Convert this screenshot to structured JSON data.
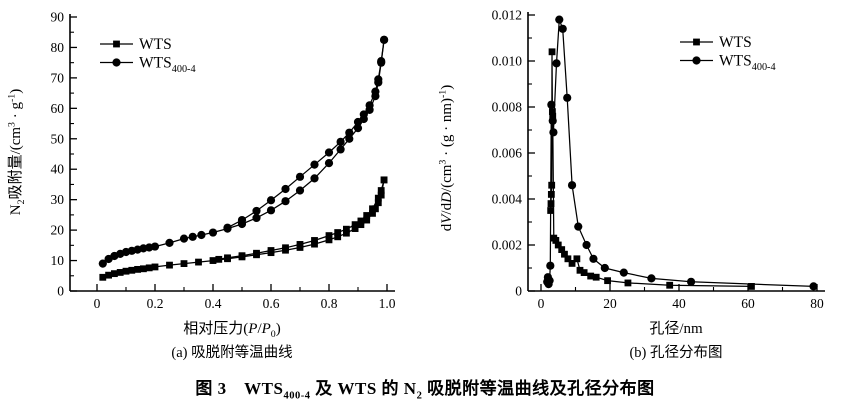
{
  "colors": {
    "background": "#ffffff",
    "ink": "#000000"
  },
  "figure_title": {
    "plain": "图 3  WTS400-4 及 WTS 的 N2 吸脱附等温曲线及孔径分布图",
    "segments": [
      {
        "t": "图 3　WTS"
      },
      {
        "t": "400-4",
        "s": "sub"
      },
      {
        "t": " 及 WTS 的 N"
      },
      {
        "t": "2",
        "s": "sub"
      },
      {
        "t": " 吸脱附等温曲线及孔径分布图"
      }
    ]
  },
  "chart_data": [
    {
      "id": "isotherm",
      "type": "line",
      "caption": {
        "plain": "(a) 吸脱附等温曲线",
        "segments": [
          {
            "t": "(a) 吸脱附等温曲线"
          }
        ]
      },
      "xlabel": {
        "plain": "相对压力(P/P0)",
        "segments": [
          {
            "t": "相对压力("
          },
          {
            "t": "P",
            "s": "i"
          },
          {
            "t": "/"
          },
          {
            "t": "P",
            "s": "i"
          },
          {
            "t": "0",
            "s": "sub"
          },
          {
            "t": ")"
          }
        ]
      },
      "ylabel": {
        "plain": "N2吸附量/(cm3·g-1)",
        "segments": [
          {
            "t": "N"
          },
          {
            "t": "2",
            "s": "sub"
          },
          {
            "t": "吸附量/(cm"
          },
          {
            "t": "3",
            "s": "sup"
          },
          {
            "t": " · g"
          },
          {
            "t": "-1",
            "s": "sup"
          },
          {
            "t": ")"
          }
        ]
      },
      "xlim": [
        0,
        1.0
      ],
      "ylim": [
        0,
        90
      ],
      "xticks": {
        "major": [
          0,
          0.2,
          0.4,
          0.6,
          0.8,
          1.0
        ],
        "labels": [
          "0",
          "0.2",
          "0.4",
          "0.6",
          "0.8",
          "1.0"
        ],
        "minor": [
          0.1,
          0.3,
          0.5,
          0.7,
          0.9
        ]
      },
      "yticks": {
        "major": [
          0,
          10,
          20,
          30,
          40,
          50,
          60,
          70,
          80,
          90
        ],
        "labels": [
          "0",
          "10",
          "20",
          "30",
          "40",
          "50",
          "60",
          "70",
          "80",
          "90"
        ],
        "minor": [
          5,
          15,
          25,
          35,
          45,
          55,
          65,
          75,
          85
        ]
      },
      "legend": {
        "position": "top-left"
      },
      "series": [
        {
          "name": "WTS",
          "label_segments": [
            {
              "t": "WTS"
            }
          ],
          "marker": "square",
          "branches": [
            {
              "name": "adsorption",
              "points": [
                [
                  0.02,
                  4.5
                ],
                [
                  0.04,
                  5.2
                ],
                [
                  0.06,
                  5.7
                ],
                [
                  0.08,
                  6.1
                ],
                [
                  0.1,
                  6.5
                ],
                [
                  0.12,
                  6.8
                ],
                [
                  0.14,
                  7.1
                ],
                [
                  0.16,
                  7.3
                ],
                [
                  0.18,
                  7.6
                ],
                [
                  0.2,
                  7.9
                ],
                [
                  0.25,
                  8.5
                ],
                [
                  0.3,
                  9.0
                ],
                [
                  0.35,
                  9.5
                ],
                [
                  0.4,
                  10.0
                ],
                [
                  0.45,
                  10.6
                ],
                [
                  0.5,
                  11.2
                ],
                [
                  0.55,
                  11.9
                ],
                [
                  0.6,
                  12.6
                ],
                [
                  0.65,
                  13.4
                ],
                [
                  0.7,
                  14.3
                ],
                [
                  0.75,
                  15.4
                ],
                [
                  0.8,
                  16.8
                ],
                [
                  0.83,
                  17.8
                ],
                [
                  0.86,
                  19.0
                ],
                [
                  0.89,
                  20.5
                ],
                [
                  0.91,
                  21.8
                ],
                [
                  0.93,
                  23.3
                ],
                [
                  0.95,
                  25.5
                ],
                [
                  0.96,
                  27.0
                ],
                [
                  0.97,
                  29.0
                ],
                [
                  0.98,
                  31.5
                ],
                [
                  0.99,
                  36.5
                ]
              ]
            },
            {
              "name": "desorption",
              "points": [
                [
                  0.99,
                  36.5
                ],
                [
                  0.98,
                  33.0
                ],
                [
                  0.97,
                  30.5
                ],
                [
                  0.95,
                  27.0
                ],
                [
                  0.93,
                  24.8
                ],
                [
                  0.91,
                  23.0
                ],
                [
                  0.89,
                  21.8
                ],
                [
                  0.86,
                  20.3
                ],
                [
                  0.83,
                  19.2
                ],
                [
                  0.8,
                  18.2
                ],
                [
                  0.75,
                  16.6
                ],
                [
                  0.7,
                  15.3
                ],
                [
                  0.65,
                  14.2
                ],
                [
                  0.6,
                  13.3
                ],
                [
                  0.55,
                  12.4
                ],
                [
                  0.5,
                  11.6
                ],
                [
                  0.45,
                  10.9
                ],
                [
                  0.42,
                  10.4
                ]
              ]
            }
          ]
        },
        {
          "name": "WTS400-4",
          "label_segments": [
            {
              "t": "WTS"
            },
            {
              "t": "400-4",
              "s": "sub"
            }
          ],
          "marker": "circle",
          "branches": [
            {
              "name": "adsorption",
              "points": [
                [
                  0.02,
                  9.0
                ],
                [
                  0.04,
                  10.5
                ],
                [
                  0.06,
                  11.5
                ],
                [
                  0.08,
                  12.2
                ],
                [
                  0.1,
                  12.8
                ],
                [
                  0.12,
                  13.2
                ],
                [
                  0.14,
                  13.6
                ],
                [
                  0.16,
                  14.0
                ],
                [
                  0.18,
                  14.3
                ],
                [
                  0.2,
                  14.6
                ],
                [
                  0.25,
                  15.8
                ],
                [
                  0.3,
                  17.2
                ],
                [
                  0.33,
                  17.8
                ],
                [
                  0.36,
                  18.4
                ],
                [
                  0.4,
                  19.2
                ],
                [
                  0.45,
                  20.5
                ],
                [
                  0.5,
                  22.0
                ],
                [
                  0.55,
                  24.0
                ],
                [
                  0.6,
                  26.5
                ],
                [
                  0.65,
                  29.5
                ],
                [
                  0.7,
                  33.0
                ],
                [
                  0.75,
                  37.0
                ],
                [
                  0.8,
                  42.0
                ],
                [
                  0.84,
                  46.5
                ],
                [
                  0.87,
                  50.0
                ],
                [
                  0.9,
                  53.5
                ],
                [
                  0.92,
                  56.5
                ],
                [
                  0.94,
                  59.5
                ],
                [
                  0.96,
                  64.0
                ],
                [
                  0.97,
                  68.5
                ],
                [
                  0.98,
                  75.0
                ],
                [
                  0.99,
                  82.5
                ]
              ]
            },
            {
              "name": "desorption",
              "points": [
                [
                  0.99,
                  82.5
                ],
                [
                  0.98,
                  75.5
                ],
                [
                  0.97,
                  69.5
                ],
                [
                  0.96,
                  65.5
                ],
                [
                  0.94,
                  61.0
                ],
                [
                  0.92,
                  58.0
                ],
                [
                  0.9,
                  55.5
                ],
                [
                  0.87,
                  52.0
                ],
                [
                  0.84,
                  49.0
                ],
                [
                  0.8,
                  45.5
                ],
                [
                  0.75,
                  41.5
                ],
                [
                  0.7,
                  37.5
                ],
                [
                  0.65,
                  33.5
                ],
                [
                  0.6,
                  29.8
                ],
                [
                  0.55,
                  26.3
                ],
                [
                  0.5,
                  23.3
                ],
                [
                  0.45,
                  20.8
                ]
              ]
            }
          ]
        }
      ]
    },
    {
      "id": "pore-size-distribution",
      "type": "line",
      "caption": {
        "plain": "(b) 孔径分布图",
        "segments": [
          {
            "t": "(b) 孔径分布图"
          }
        ]
      },
      "xlabel": {
        "plain": "孔径/nm",
        "segments": [
          {
            "t": "孔径/nm"
          }
        ]
      },
      "ylabel": {
        "plain": "dV/dD/(cm3·(g·nm)-1)",
        "segments": [
          {
            "t": "d"
          },
          {
            "t": "V",
            "s": "i"
          },
          {
            "t": "/d"
          },
          {
            "t": "D",
            "s": "i"
          },
          {
            "t": "/(cm"
          },
          {
            "t": "3",
            "s": "sup"
          },
          {
            "t": " · (g · nm)"
          },
          {
            "t": "-1",
            "s": "sup"
          },
          {
            "t": ")"
          }
        ]
      },
      "xlim": [
        0,
        80
      ],
      "ylim": [
        0,
        0.012
      ],
      "xticks": {
        "major": [
          0,
          20,
          40,
          60,
          80
        ],
        "labels": [
          "0",
          "20",
          "40",
          "60",
          "80"
        ],
        "minor": [
          10,
          30,
          50,
          70
        ]
      },
      "yticks": {
        "major": [
          0,
          0.002,
          0.004,
          0.006,
          0.008,
          0.01,
          0.012
        ],
        "labels": [
          "0",
          "0.002",
          "0.004",
          "0.006",
          "0.008",
          "0.010",
          "0.012"
        ],
        "minor": [
          0.001,
          0.003,
          0.005,
          0.007,
          0.009,
          0.011
        ]
      },
      "legend": {
        "position": "top-right"
      },
      "series": [
        {
          "name": "WTS",
          "label_segments": [
            {
              "t": "WTS"
            }
          ],
          "marker": "square",
          "branches": [
            {
              "name": "distribution",
              "points": [
                [
                  2.8,
                  0.0035
                ],
                [
                  2.9,
                  0.0038
                ],
                [
                  3.0,
                  0.0042
                ],
                [
                  3.1,
                  0.0046
                ],
                [
                  3.2,
                  0.0104
                ],
                [
                  3.3,
                  0.0078
                ],
                [
                  3.4,
                  0.0076
                ],
                [
                  3.7,
                  0.0023
                ],
                [
                  4.3,
                  0.0022
                ],
                [
                  5.0,
                  0.002
                ],
                [
                  6.0,
                  0.0018
                ],
                [
                  6.8,
                  0.0016
                ],
                [
                  7.8,
                  0.0014
                ],
                [
                  9.0,
                  0.0012
                ],
                [
                  10.4,
                  0.0014
                ],
                [
                  11.3,
                  0.0009
                ],
                [
                  12.5,
                  0.0008
                ],
                [
                  14.4,
                  0.00065
                ],
                [
                  16.0,
                  0.0006
                ],
                [
                  19.3,
                  0.00045
                ],
                [
                  25.2,
                  0.00035
                ],
                [
                  37.3,
                  0.00025
                ],
                [
                  61.0,
                  0.0002
                ]
              ]
            }
          ]
        },
        {
          "name": "WTS400-4",
          "label_segments": [
            {
              "t": "WTS"
            },
            {
              "t": "400-4",
              "s": "sub"
            }
          ],
          "marker": "circle",
          "branches": [
            {
              "name": "distribution",
              "points": [
                [
                  1.8,
                  0.0004
                ],
                [
                  2.0,
                  0.0006
                ],
                [
                  2.2,
                  0.0003
                ],
                [
                  2.5,
                  0.00045
                ],
                [
                  2.7,
                  0.0011
                ],
                [
                  3.0,
                  0.0081
                ],
                [
                  3.4,
                  0.0074
                ],
                [
                  3.6,
                  0.0069
                ],
                [
                  4.5,
                  0.0099
                ],
                [
                  5.3,
                  0.0118
                ],
                [
                  6.3,
                  0.0114
                ],
                [
                  7.6,
                  0.0084
                ],
                [
                  9.0,
                  0.0046
                ],
                [
                  10.8,
                  0.0028
                ],
                [
                  13.2,
                  0.002
                ],
                [
                  15.2,
                  0.0014
                ],
                [
                  18.5,
                  0.001
                ],
                [
                  24.0,
                  0.0008
                ],
                [
                  32.0,
                  0.00055
                ],
                [
                  43.5,
                  0.0004
                ],
                [
                  79.0,
                  0.0002
                ]
              ]
            }
          ]
        }
      ]
    }
  ]
}
